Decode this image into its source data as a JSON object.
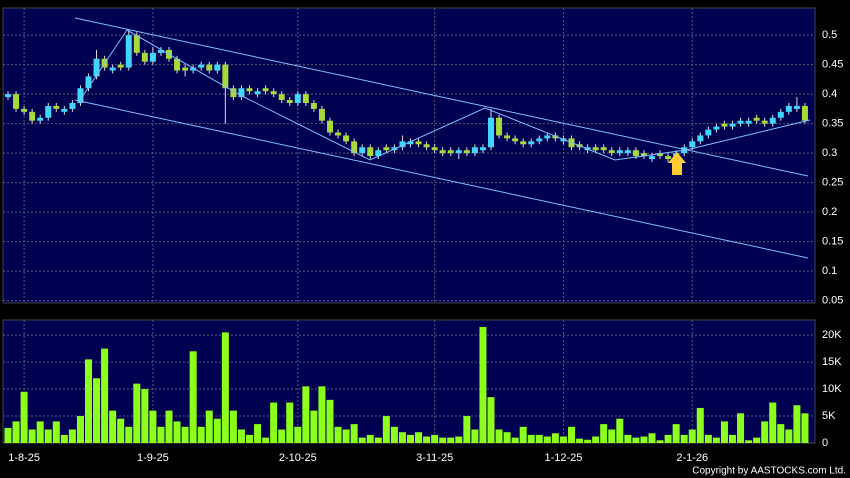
{
  "chart_data": [
    {
      "type": "candlestick",
      "categories": [
        null,
        null,
        "1-8-25",
        null,
        null,
        null,
        null,
        null,
        null,
        null,
        null,
        null,
        null,
        null,
        null,
        null,
        null,
        null,
        "1-9-25",
        null,
        null,
        null,
        null,
        null,
        null,
        null,
        null,
        null,
        null,
        null,
        null,
        null,
        null,
        null,
        null,
        null,
        "2-10-25",
        null,
        null,
        null,
        null,
        null,
        null,
        null,
        null,
        null,
        null,
        null,
        null,
        null,
        null,
        null,
        null,
        "3-11-25",
        null,
        null,
        null,
        null,
        null,
        null,
        null,
        null,
        null,
        null,
        null,
        null,
        null,
        null,
        null,
        "1-12-25",
        null,
        null,
        null,
        null,
        null,
        null,
        null,
        null,
        null,
        null,
        null,
        null,
        null,
        null,
        null,
        "2-1-26",
        null,
        null,
        null,
        null,
        null,
        null,
        null,
        null,
        null,
        null,
        null,
        null,
        null,
        null
      ],
      "open": [
        0.395,
        0.4,
        0.375,
        0.37,
        0.355,
        0.36,
        0.38,
        0.37,
        0.375,
        0.385,
        0.41,
        0.43,
        0.46,
        0.44,
        0.45,
        0.445,
        0.5,
        0.47,
        0.455,
        0.47,
        0.475,
        0.46,
        0.445,
        0.44,
        0.445,
        0.45,
        0.44,
        0.45,
        0.41,
        0.395,
        0.41,
        0.4,
        0.41,
        0.405,
        0.4,
        0.39,
        0.385,
        0.4,
        0.385,
        0.375,
        0.355,
        0.335,
        0.33,
        0.32,
        0.3,
        0.31,
        0.295,
        0.31,
        0.305,
        0.31,
        0.315,
        0.32,
        0.315,
        0.31,
        0.305,
        0.305,
        0.3,
        0.305,
        0.3,
        0.305,
        0.31,
        0.36,
        0.33,
        0.325,
        0.32,
        0.315,
        0.32,
        0.325,
        0.33,
        0.32,
        0.325,
        0.315,
        0.305,
        0.31,
        0.31,
        0.305,
        0.3,
        0.3,
        0.305,
        0.3,
        0.29,
        0.3,
        0.295,
        0.29,
        0.3,
        0.31,
        0.32,
        0.33,
        0.34,
        0.35,
        0.345,
        0.35,
        0.35,
        0.36,
        0.355,
        0.35,
        0.36,
        0.37,
        0.375,
        0.38
      ],
      "high": [
        0.405,
        0.405,
        0.38,
        0.375,
        0.365,
        0.385,
        0.385,
        0.38,
        0.39,
        0.415,
        0.435,
        0.475,
        0.465,
        0.45,
        0.455,
        0.51,
        0.505,
        0.475,
        0.48,
        0.48,
        0.48,
        0.465,
        0.45,
        0.45,
        0.455,
        0.455,
        0.455,
        0.455,
        0.415,
        0.415,
        0.415,
        0.41,
        0.415,
        0.41,
        0.405,
        0.395,
        0.405,
        0.405,
        0.39,
        0.38,
        0.36,
        0.34,
        0.335,
        0.325,
        0.315,
        0.315,
        0.31,
        0.315,
        0.315,
        0.33,
        0.325,
        0.325,
        0.32,
        0.315,
        0.31,
        0.31,
        0.31,
        0.31,
        0.315,
        0.315,
        0.375,
        0.365,
        0.335,
        0.33,
        0.325,
        0.325,
        0.33,
        0.335,
        0.335,
        0.33,
        0.33,
        0.32,
        0.315,
        0.315,
        0.315,
        0.31,
        0.31,
        0.31,
        0.31,
        0.305,
        0.3,
        0.305,
        0.3,
        0.305,
        0.315,
        0.325,
        0.335,
        0.345,
        0.35,
        0.355,
        0.355,
        0.36,
        0.36,
        0.365,
        0.36,
        0.365,
        0.375,
        0.385,
        0.395,
        0.385
      ],
      "low": [
        0.39,
        0.37,
        0.365,
        0.35,
        0.35,
        0.355,
        0.37,
        0.365,
        0.37,
        0.38,
        0.405,
        0.425,
        0.44,
        0.435,
        0.44,
        0.44,
        0.465,
        0.45,
        0.45,
        0.465,
        0.455,
        0.435,
        0.43,
        0.435,
        0.44,
        0.435,
        0.435,
        0.35,
        0.39,
        0.39,
        0.4,
        0.395,
        0.4,
        0.395,
        0.385,
        0.38,
        0.38,
        0.38,
        0.37,
        0.35,
        0.33,
        0.325,
        0.315,
        0.295,
        0.295,
        0.29,
        0.29,
        0.3,
        0.3,
        0.305,
        0.31,
        0.31,
        0.305,
        0.3,
        0.295,
        0.295,
        0.29,
        0.295,
        0.295,
        0.3,
        0.305,
        0.325,
        0.32,
        0.315,
        0.31,
        0.31,
        0.315,
        0.32,
        0.32,
        0.315,
        0.305,
        0.305,
        0.3,
        0.3,
        0.3,
        0.295,
        0.295,
        0.295,
        0.29,
        0.29,
        0.285,
        0.29,
        0.285,
        0.285,
        0.295,
        0.305,
        0.315,
        0.325,
        0.335,
        0.34,
        0.34,
        0.345,
        0.345,
        0.35,
        0.345,
        0.345,
        0.355,
        0.365,
        0.37,
        0.35
      ],
      "close": [
        0.4,
        0.375,
        0.37,
        0.355,
        0.36,
        0.38,
        0.375,
        0.375,
        0.385,
        0.41,
        0.43,
        0.46,
        0.445,
        0.445,
        0.445,
        0.5,
        0.47,
        0.455,
        0.47,
        0.475,
        0.46,
        0.44,
        0.44,
        0.445,
        0.45,
        0.44,
        0.45,
        0.41,
        0.395,
        0.41,
        0.405,
        0.405,
        0.405,
        0.4,
        0.39,
        0.385,
        0.4,
        0.385,
        0.375,
        0.355,
        0.335,
        0.33,
        0.32,
        0.3,
        0.31,
        0.295,
        0.305,
        0.305,
        0.31,
        0.32,
        0.32,
        0.315,
        0.31,
        0.305,
        0.3,
        0.3,
        0.305,
        0.3,
        0.31,
        0.31,
        0.36,
        0.33,
        0.325,
        0.32,
        0.315,
        0.32,
        0.325,
        0.33,
        0.325,
        0.325,
        0.31,
        0.31,
        0.31,
        0.305,
        0.305,
        0.3,
        0.305,
        0.305,
        0.295,
        0.295,
        0.295,
        0.295,
        0.29,
        0.3,
        0.31,
        0.32,
        0.33,
        0.34,
        0.345,
        0.345,
        0.35,
        0.355,
        0.355,
        0.355,
        0.35,
        0.36,
        0.37,
        0.38,
        0.38,
        0.355
      ],
      "up_color": "#3fd6ff",
      "down_color": "#a6d93a",
      "ylim": [
        0.046,
        0.546
      ],
      "yticks": [
        0.05,
        0.1,
        0.15,
        0.2,
        0.25,
        0.3,
        0.35,
        0.4,
        0.45,
        0.5
      ],
      "grid": true
    },
    {
      "type": "bar",
      "values": [
        2800,
        4000,
        9500,
        2500,
        4000,
        2500,
        4000,
        1500,
        2500,
        5000,
        15500,
        12000,
        17500,
        6000,
        4500,
        3000,
        11000,
        10000,
        6000,
        3000,
        6000,
        4000,
        3000,
        17000,
        3000,
        6000,
        4500,
        20500,
        6000,
        2500,
        1500,
        3500,
        1000,
        7500,
        2500,
        7500,
        3000,
        10500,
        6000,
        10500,
        8000,
        3000,
        2500,
        3500,
        1000,
        1500,
        1000,
        5000,
        3000,
        2000,
        1500,
        2000,
        1200,
        1500,
        1000,
        1000,
        1200,
        5000,
        2500,
        21500,
        8500,
        2500,
        2000,
        1000,
        3000,
        1500,
        1500,
        1200,
        1800,
        1200,
        3000,
        800,
        600,
        1200,
        3500,
        2500,
        4500,
        1500,
        1000,
        1200,
        1800,
        500,
        1500,
        3500,
        1500,
        2500,
        6500,
        1500,
        1000,
        4000,
        1500,
        5500,
        500,
        1000,
        4000,
        7500,
        3500,
        2500,
        7000,
        5500
      ],
      "color": "#8cff1a",
      "ylim": [
        0,
        22800
      ],
      "yticks": [
        0,
        {
          "value": 5000,
          "label": "5K"
        },
        {
          "value": 10000,
          "label": "10K"
        },
        {
          "value": 15000,
          "label": "15K"
        },
        {
          "value": 20000,
          "label": "20K"
        }
      ],
      "grid": true
    }
  ],
  "footer": "Copyright by AASTOCKS.com Ltd."
}
